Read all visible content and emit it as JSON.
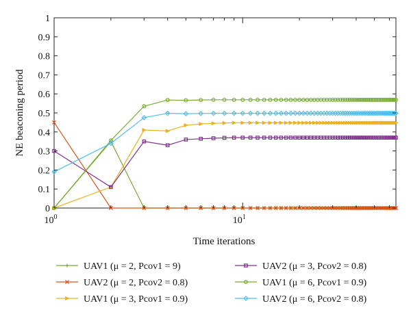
{
  "chart_data": {
    "type": "line",
    "xscale": "log",
    "xlim": [
      1,
      65
    ],
    "ylim": [
      0,
      1
    ],
    "grid": false,
    "xlabel": "Time iterations",
    "ylabel": "NE beaconing period",
    "x_ticks": [
      {
        "value": 1,
        "base": "10",
        "exp": "0"
      },
      {
        "value": 10,
        "base": "10",
        "exp": "1"
      }
    ],
    "y_ticks": [
      "0",
      "0.1",
      "0.2",
      "0.3",
      "0.4",
      "0.5",
      "0.6",
      "0.7",
      "0.8",
      "0.9",
      "1"
    ],
    "legend_position": "bottom",
    "iterations": 65,
    "series": [
      {
        "name": "UAV1 (μ = 2, Pcov1 = 9)",
        "color": "#77ac30",
        "marker": "plus",
        "start": [
          0,
          0.35,
          0.0
        ],
        "steady": 0.0
      },
      {
        "name": "UAV2 (μ = 2, Pcov2 = 0.8)",
        "color": "#d95319",
        "marker": "x",
        "start": [
          0.45,
          0.0,
          0.0
        ],
        "steady": 0.0
      },
      {
        "name": "UAV1 (μ = 3, Pcov1 = 0.9)",
        "color": "#edb120",
        "marker": "triangle-right",
        "start": [
          0.0,
          0.11,
          0.41,
          0.405,
          0.435,
          0.442,
          0.445,
          0.447,
          0.448
        ],
        "steady": 0.448
      },
      {
        "name": "UAV2 (μ = 3, Pcov2 = 0.8)",
        "color": "#7e2f8e",
        "marker": "square",
        "start": [
          0.3,
          0.11,
          0.35,
          0.33,
          0.36,
          0.364,
          0.367,
          0.369,
          0.37
        ],
        "steady": 0.37
      },
      {
        "name": "UAV1 (μ = 6, Pcov1 = 0.9)",
        "color": "#77ac30",
        "marker": "circle",
        "start": [
          0.0,
          0.355,
          0.535,
          0.568,
          0.566,
          0.568,
          0.569
        ],
        "steady": 0.569
      },
      {
        "name": "UAV2 (μ = 6, Pcov2 = 0.8)",
        "color": "#4dbeee",
        "marker": "diamond",
        "start": [
          0.19,
          0.34,
          0.475,
          0.498,
          0.496,
          0.497,
          0.498
        ],
        "steady": 0.498
      }
    ]
  }
}
